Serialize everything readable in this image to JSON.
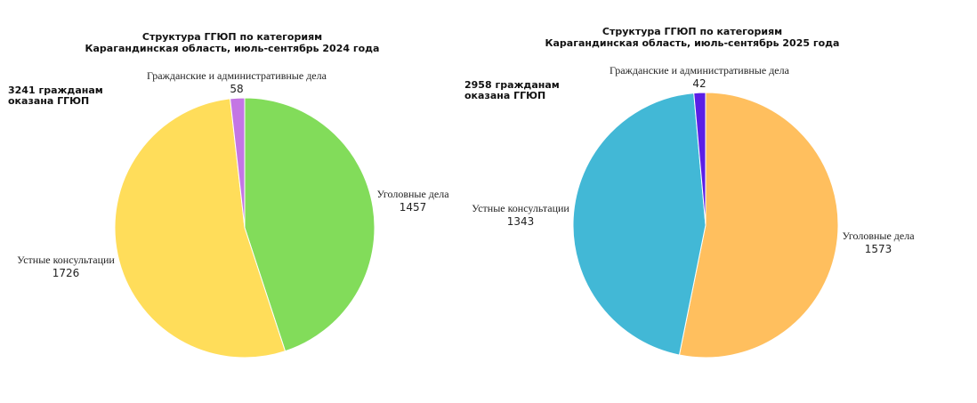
{
  "chart_data": [
    {
      "type": "pie",
      "title": "Структура ГГЮП по категориям",
      "subtitle": "Карагандинская область, июль-сентябрь 2024 года",
      "total_text": [
        "3241 гражданам",
        "оказана ГГЮП"
      ],
      "slices": [
        {
          "label": "Уголовные дела",
          "value": 1457,
          "color": "#82dc5a"
        },
        {
          "label": "Устные консультации",
          "value": 1726,
          "color": "#ffdd5a"
        },
        {
          "label": "Гражданские и административные дела",
          "value": 58,
          "color": "#c476e4"
        }
      ]
    },
    {
      "type": "pie",
      "title": "Структура ГГЮП по категориям",
      "subtitle": "Карагандинская область, июль-сентябрь 2025 года",
      "total_text": [
        "2958 гражданам",
        "оказана ГГЮП"
      ],
      "slices": [
        {
          "label": "Уголовные дела",
          "value": 1573,
          "color": "#ffbf5e"
        },
        {
          "label": "Устные консультации",
          "value": 1343,
          "color": "#42b8d6"
        },
        {
          "label": "Гражданские и административные дела",
          "value": 42,
          "color": "#5b1ee6"
        }
      ]
    }
  ]
}
